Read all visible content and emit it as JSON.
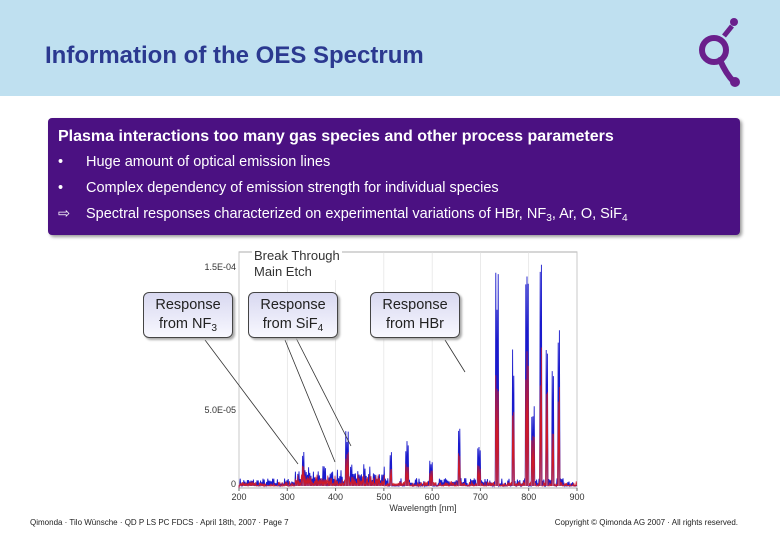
{
  "header": {
    "title": "Information of the OES Spectrum"
  },
  "box": {
    "heading": "Plasma interactions too many gas species and other process parameters",
    "bullets": [
      {
        "marker": "•",
        "parts": [
          {
            "text": "Huge amount of optical emission lines"
          }
        ]
      },
      {
        "marker": "•",
        "parts": [
          {
            "text": "Complex dependency of emission strength for individual species"
          }
        ]
      },
      {
        "marker": "⇨",
        "parts": [
          {
            "text": "Spectral responses characterized on experimental variations of HBr, NF"
          },
          {
            "sub": "3"
          },
          {
            "text": ", Ar, O, SiF"
          },
          {
            "sub": "4"
          }
        ]
      }
    ]
  },
  "spectrum": {
    "x_label": "Wavelength [nm]",
    "xticks": [
      200,
      300,
      400,
      500,
      600,
      700,
      800,
      900
    ],
    "ytick_labels": [
      "1.5E-04",
      "5.0E-05",
      "0"
    ],
    "phase_label": [
      "Break Through",
      "Main Etch"
    ],
    "callouts": [
      {
        "lines": [
          {
            "parts": [
              {
                "text": "Response"
              }
            ]
          },
          {
            "parts": [
              {
                "text": "from NF"
              },
              {
                "sub": "3"
              }
            ]
          }
        ]
      },
      {
        "lines": [
          {
            "parts": [
              {
                "text": "Response"
              }
            ]
          },
          {
            "parts": [
              {
                "text": "from SiF"
              },
              {
                "sub": "4"
              }
            ]
          }
        ]
      },
      {
        "lines": [
          {
            "parts": [
              {
                "text": "Response"
              }
            ]
          },
          {
            "parts": [
              {
                "text": "from HBr"
              }
            ]
          }
        ]
      }
    ]
  },
  "footer": {
    "left": "Qimonda · Tilo Wünsche · QD P LS PC FDCS · April 18th, 2007 · Page 7",
    "right": "Copyright © Qimonda AG 2007 · All rights reserved."
  }
}
